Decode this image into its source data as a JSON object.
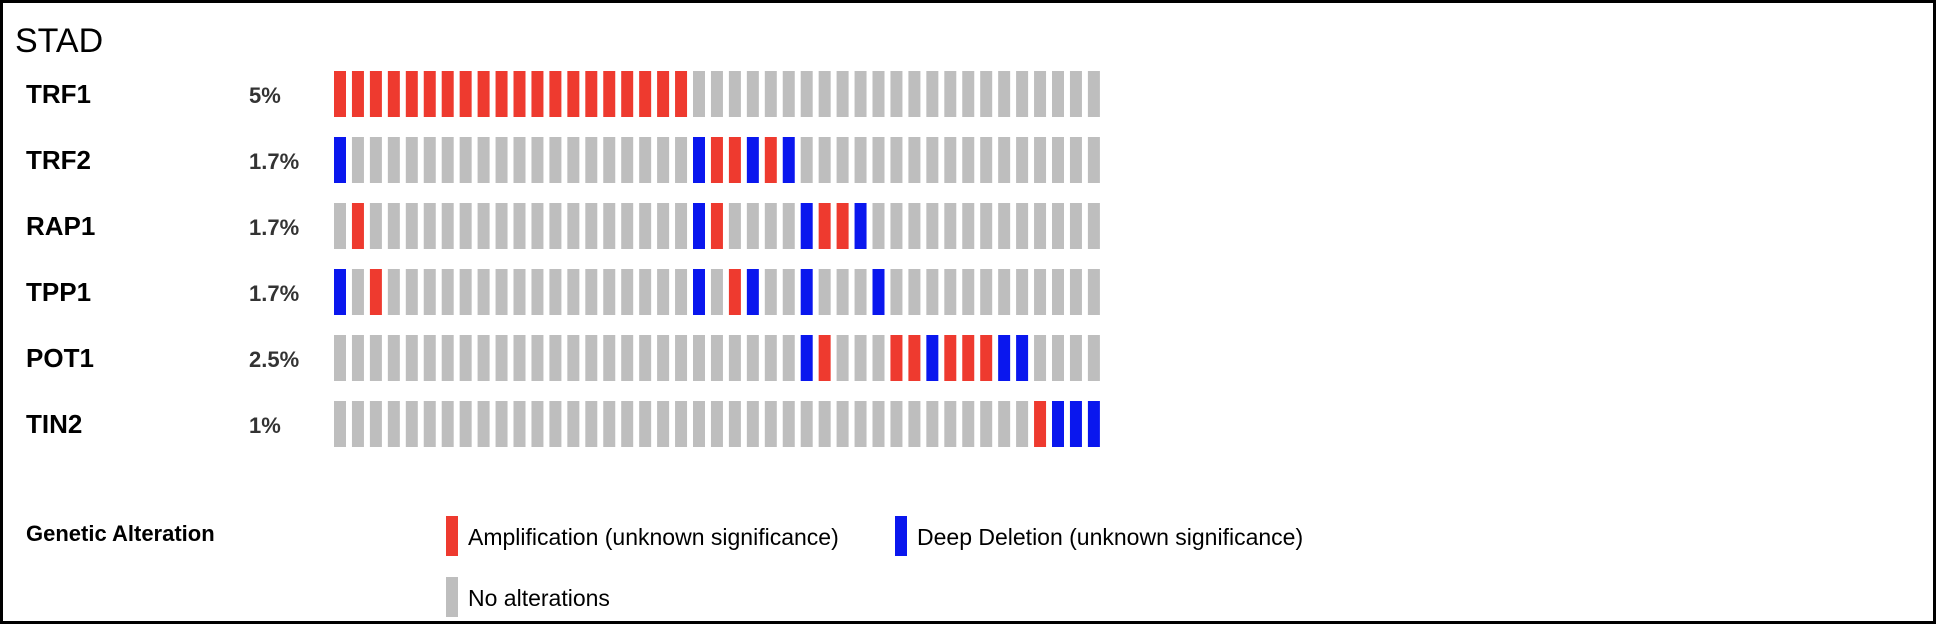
{
  "chart_data": {
    "type": "oncoprint",
    "title": "STAD",
    "colors": {
      "amp": "#ee3a2f",
      "del": "#0a17ee",
      "none": "#bebebe"
    },
    "genes": [
      {
        "name": "TRF1",
        "pct": "5%",
        "values": [
          "amp",
          "amp",
          "amp",
          "amp",
          "amp",
          "amp",
          "amp",
          "amp",
          "amp",
          "amp",
          "amp",
          "amp",
          "amp",
          "amp",
          "amp",
          "amp",
          "amp",
          "amp",
          "amp",
          "amp",
          "none",
          "none",
          "none",
          "none",
          "none",
          "none",
          "none",
          "none",
          "none",
          "none",
          "none",
          "none",
          "none",
          "none",
          "none",
          "none",
          "none",
          "none",
          "none",
          "none",
          "none",
          "none",
          "none"
        ]
      },
      {
        "name": "TRF2",
        "pct": "1.7%",
        "values": [
          "del",
          "none",
          "none",
          "none",
          "none",
          "none",
          "none",
          "none",
          "none",
          "none",
          "none",
          "none",
          "none",
          "none",
          "none",
          "none",
          "none",
          "none",
          "none",
          "none",
          "del",
          "amp",
          "amp",
          "del",
          "amp",
          "del",
          "none",
          "none",
          "none",
          "none",
          "none",
          "none",
          "none",
          "none",
          "none",
          "none",
          "none",
          "none",
          "none",
          "none",
          "none",
          "none",
          "none"
        ]
      },
      {
        "name": "RAP1",
        "pct": "1.7%",
        "values": [
          "none",
          "amp",
          "none",
          "none",
          "none",
          "none",
          "none",
          "none",
          "none",
          "none",
          "none",
          "none",
          "none",
          "none",
          "none",
          "none",
          "none",
          "none",
          "none",
          "none",
          "del",
          "amp",
          "none",
          "none",
          "none",
          "none",
          "del",
          "amp",
          "amp",
          "del",
          "none",
          "none",
          "none",
          "none",
          "none",
          "none",
          "none",
          "none",
          "none",
          "none",
          "none",
          "none",
          "none"
        ]
      },
      {
        "name": "TPP1",
        "pct": "1.7%",
        "values": [
          "del",
          "none",
          "amp",
          "none",
          "none",
          "none",
          "none",
          "none",
          "none",
          "none",
          "none",
          "none",
          "none",
          "none",
          "none",
          "none",
          "none",
          "none",
          "none",
          "none",
          "del",
          "none",
          "amp",
          "del",
          "none",
          "none",
          "del",
          "none",
          "none",
          "none",
          "del",
          "none",
          "none",
          "none",
          "none",
          "none",
          "none",
          "none",
          "none",
          "none",
          "none",
          "none",
          "none"
        ]
      },
      {
        "name": "POT1",
        "pct": "2.5%",
        "values": [
          "none",
          "none",
          "none",
          "none",
          "none",
          "none",
          "none",
          "none",
          "none",
          "none",
          "none",
          "none",
          "none",
          "none",
          "none",
          "none",
          "none",
          "none",
          "none",
          "none",
          "none",
          "none",
          "none",
          "none",
          "none",
          "none",
          "del",
          "amp",
          "none",
          "none",
          "none",
          "amp",
          "amp",
          "del",
          "amp",
          "amp",
          "amp",
          "del",
          "del",
          "none",
          "none",
          "none",
          "none"
        ]
      },
      {
        "name": "TIN2",
        "pct": "1%",
        "values": [
          "none",
          "none",
          "none",
          "none",
          "none",
          "none",
          "none",
          "none",
          "none",
          "none",
          "none",
          "none",
          "none",
          "none",
          "none",
          "none",
          "none",
          "none",
          "none",
          "none",
          "none",
          "none",
          "none",
          "none",
          "none",
          "none",
          "none",
          "none",
          "none",
          "none",
          "none",
          "none",
          "none",
          "none",
          "none",
          "none",
          "none",
          "none",
          "none",
          "amp",
          "del",
          "del",
          "del"
        ]
      }
    ],
    "legend": {
      "title": "Genetic Alteration",
      "items": [
        {
          "key": "amp",
          "label": "Amplification (unknown significance)"
        },
        {
          "key": "del",
          "label": "Deep Deletion (unknown significance)"
        },
        {
          "key": "none",
          "label": "No alterations"
        }
      ]
    }
  }
}
